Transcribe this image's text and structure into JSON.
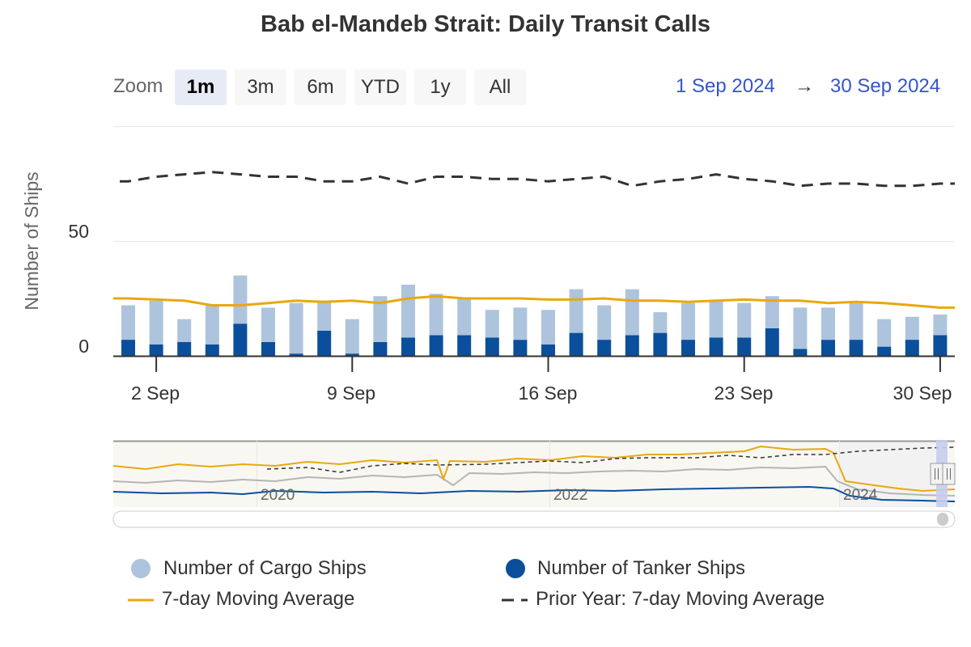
{
  "chart_title": "Bab el-Mandeb Strait: Daily Transit Calls",
  "zoom": {
    "label": "Zoom",
    "buttons": [
      "1m",
      "3m",
      "6m",
      "YTD",
      "1y",
      "All"
    ],
    "selected": "1m"
  },
  "date_range": {
    "from": "1 Sep 2024",
    "arrow": "→",
    "to": "30 Sep 2024"
  },
  "legend": {
    "cargo": "Number of Cargo Ships",
    "tanker": "Number of Tanker Ships",
    "ma": "7-day Moving Average",
    "prior_ma": "Prior Year: 7-day Moving Average"
  },
  "colors": {
    "cargo": "#adc4dc",
    "tanker": "#0b4f9c",
    "ma": "#e9a80e",
    "prior_ma": "#333333",
    "range_text": "#3355cc"
  },
  "chart_data": {
    "type": "bar",
    "title": "Bab el-Mandeb Strait: Daily Transit Calls",
    "ylabel": "Number of Ships",
    "xlabel": "",
    "ylim": [
      0,
      100
    ],
    "yticks": [
      0,
      50
    ],
    "grid": true,
    "stacked": true,
    "x": [
      "1 Sep",
      "2 Sep",
      "3 Sep",
      "4 Sep",
      "5 Sep",
      "6 Sep",
      "7 Sep",
      "8 Sep",
      "9 Sep",
      "10 Sep",
      "11 Sep",
      "12 Sep",
      "13 Sep",
      "14 Sep",
      "15 Sep",
      "16 Sep",
      "17 Sep",
      "18 Sep",
      "19 Sep",
      "20 Sep",
      "21 Sep",
      "22 Sep",
      "23 Sep",
      "24 Sep",
      "25 Sep",
      "26 Sep",
      "27 Sep",
      "28 Sep",
      "29 Sep",
      "30 Sep"
    ],
    "xtick_labels": [
      "2 Sep",
      "9 Sep",
      "16 Sep",
      "23 Sep",
      "30 Sep"
    ],
    "series": [
      {
        "name": "Number of Tanker Ships",
        "type": "bar",
        "values": [
          7,
          5,
          6,
          5,
          14,
          6,
          1,
          11,
          1,
          6,
          8,
          9,
          9,
          8,
          7,
          5,
          10,
          7,
          9,
          10,
          7,
          8,
          8,
          12,
          3,
          7,
          7,
          4,
          7,
          9
        ]
      },
      {
        "name": "Number of Cargo Ships",
        "type": "bar",
        "values": [
          15,
          19,
          10,
          17,
          21,
          15,
          22,
          13,
          15,
          20,
          23,
          18,
          16,
          12,
          14,
          15,
          19,
          15,
          20,
          9,
          16,
          16,
          15,
          14,
          18,
          14,
          16,
          12,
          10,
          9
        ]
      },
      {
        "name": "7-day Moving Average",
        "type": "line",
        "values": [
          25,
          24.5,
          24,
          22,
          22,
          23,
          24,
          23.5,
          24,
          23,
          25,
          26,
          25,
          25,
          25,
          24.5,
          24.5,
          25,
          24,
          24,
          23.5,
          24,
          24.5,
          24,
          24,
          23,
          23.5,
          23,
          22,
          21
        ]
      },
      {
        "name": "Prior Year: 7-day Moving Average",
        "type": "line",
        "dash": true,
        "values": [
          76,
          78,
          79,
          80,
          79,
          78,
          78,
          76,
          76,
          78,
          75,
          78,
          78,
          77,
          77,
          76,
          77,
          78,
          74,
          76,
          77,
          79,
          77,
          76,
          74,
          75,
          75,
          74,
          74,
          75
        ]
      }
    ]
  },
  "navigator": {
    "year_labels": [
      "2020",
      "2022",
      "2024"
    ]
  }
}
